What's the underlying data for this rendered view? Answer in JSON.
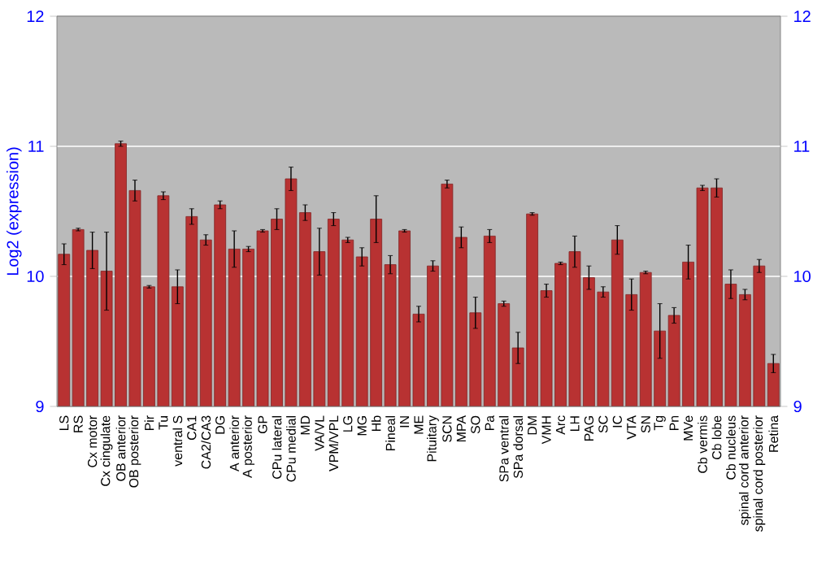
{
  "chart_data": {
    "type": "bar",
    "ylabel": "Log2 (expression)",
    "categories": [
      "LS",
      "RS",
      "Cx motor",
      "Cx cingulate",
      "OB anterior",
      "OB posterior",
      "Pir",
      "Tu",
      "ventral S",
      "CA1",
      "CA2/CA3",
      "DG",
      "A anterior",
      "A posterior",
      "GP",
      "CPu lateral",
      "CPu medial",
      "MD",
      "VA/VL",
      "VPM/VPL",
      "LG",
      "MG",
      "Hb",
      "Pineal",
      "IN",
      "ME",
      "Pituitary",
      "SCN",
      "MPA",
      "SO",
      "Pa",
      "SPa ventral",
      "SPa dorsal",
      "DM",
      "VMH",
      "Arc",
      "LH",
      "PAG",
      "SC",
      "IC",
      "VTA",
      "SN",
      "Tg",
      "Pn",
      "MVe",
      "Cb vermis",
      "Cb lobe",
      "Cb nucleus",
      "spinal cord anterior",
      "spinal cord posterior",
      "Retina"
    ],
    "values": [
      10.17,
      10.36,
      10.2,
      10.04,
      11.02,
      10.66,
      9.92,
      10.62,
      9.92,
      10.46,
      10.28,
      10.55,
      10.21,
      10.21,
      10.35,
      10.44,
      10.75,
      10.49,
      10.19,
      10.44,
      10.28,
      10.15,
      10.44,
      10.09,
      10.35,
      9.71,
      10.08,
      10.71,
      10.3,
      9.72,
      10.31,
      9.79,
      9.45,
      10.48,
      9.89,
      10.1,
      10.19,
      9.99,
      9.88,
      10.28,
      9.86,
      10.03,
      9.58,
      9.7,
      10.11,
      10.68,
      10.68,
      9.94,
      9.86,
      10.08,
      9.33
    ],
    "errors": [
      0.08,
      0.01,
      0.14,
      0.3,
      0.02,
      0.08,
      0.01,
      0.03,
      0.13,
      0.06,
      0.04,
      0.03,
      0.14,
      0.02,
      0.01,
      0.08,
      0.09,
      0.06,
      0.18,
      0.05,
      0.02,
      0.07,
      0.18,
      0.07,
      0.01,
      0.06,
      0.04,
      0.03,
      0.08,
      0.12,
      0.05,
      0.02,
      0.12,
      0.01,
      0.05,
      0.01,
      0.12,
      0.09,
      0.04,
      0.11,
      0.12,
      0.01,
      0.21,
      0.06,
      0.13,
      0.02,
      0.07,
      0.11,
      0.04,
      0.05,
      0.07
    ],
    "color": "#b83232",
    "ylim": [
      9,
      12
    ],
    "yticks": [
      9,
      10,
      11,
      12
    ],
    "y2lim": [
      9,
      12
    ],
    "y2ticks": [
      9,
      10,
      11,
      12
    ],
    "grid": "y"
  }
}
